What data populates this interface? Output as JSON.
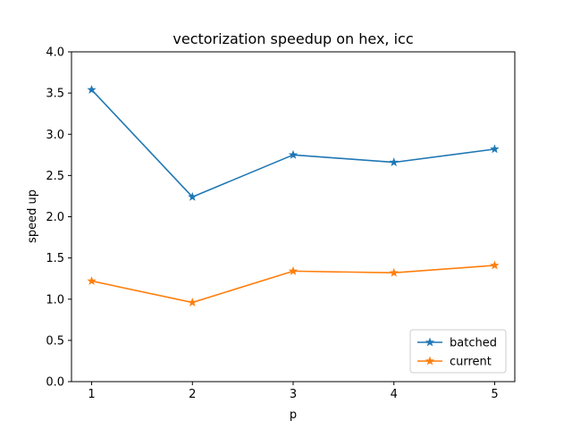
{
  "chart_data": {
    "type": "line",
    "title": "vectorization speedup on hex, icc",
    "xlabel": "p",
    "ylabel": "speed up",
    "x": [
      1,
      2,
      3,
      4,
      5
    ],
    "xlim": [
      0.8,
      5.2
    ],
    "ylim": [
      0.0,
      4.0
    ],
    "xticks": [
      "1",
      "2",
      "3",
      "4",
      "5"
    ],
    "yticks": [
      "0.0",
      "0.5",
      "1.0",
      "1.5",
      "2.0",
      "2.5",
      "3.0",
      "3.5",
      "4.0"
    ],
    "grid": false,
    "legend_position": "lower-right",
    "series": [
      {
        "name": "batched",
        "color": "#1f77b4",
        "marker": "star",
        "values": [
          3.54,
          2.24,
          2.75,
          2.66,
          2.82
        ]
      },
      {
        "name": "current",
        "color": "#ff7f0e",
        "marker": "star",
        "values": [
          1.22,
          0.96,
          1.34,
          1.32,
          1.41
        ]
      }
    ]
  }
}
